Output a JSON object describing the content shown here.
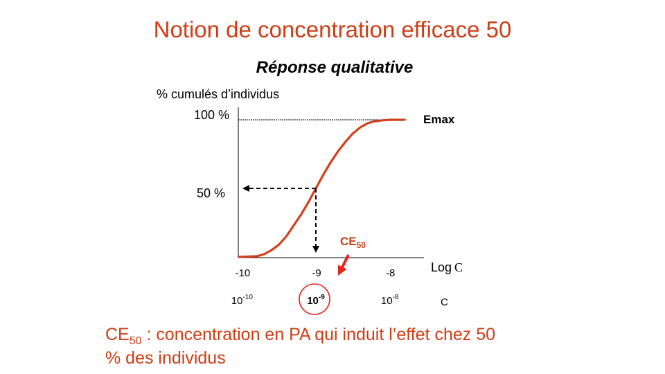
{
  "title": "Notion de concentration efficace 50",
  "subtitle": "Réponse qualitative",
  "colors": {
    "accent": "#cc3e15",
    "curve": "#d23f1c",
    "highlight": "#e8231b"
  },
  "chart_data": {
    "type": "line",
    "ylabel": "% cumulés  d’individus",
    "xlabel": "Log",
    "xlabel_suffix": "C",
    "x_scale": "log",
    "xlim": [
      -10.05,
      -7.65
    ],
    "ylim": [
      0,
      100
    ],
    "x_ticks": [
      {
        "log": "-10",
        "base": "10",
        "exp": "-10",
        "value": -10
      },
      {
        "log": "-9",
        "base": "10",
        "exp": "-9",
        "value": -9
      },
      {
        "log": "-8",
        "base": "10",
        "exp": "-8",
        "value": -8
      }
    ],
    "x_unit_label": "C",
    "y_ticks": [
      {
        "label": "100 %",
        "value": 100
      },
      {
        "label": "50 %",
        "value": 50
      }
    ],
    "series": [
      {
        "x": [
          -10.05,
          -9.8,
          -9.7,
          -9.6,
          -9.5,
          -9.4,
          -9.3,
          -9.2,
          -9.1,
          -9.0,
          -8.9,
          -8.8,
          -8.7,
          -8.6,
          -8.5,
          -8.4,
          -8.3,
          -8.2,
          -8.1,
          -8.0,
          -7.9,
          -7.8
        ],
        "y": [
          0,
          0.5,
          2,
          5,
          9,
          15,
          23,
          31,
          40,
          50,
          60,
          69,
          77,
          84,
          90,
          94.5,
          97.5,
          99,
          99.6,
          100,
          100,
          100
        ]
      }
    ],
    "emax_label": "Emax",
    "ce50": {
      "label": "CE",
      "sub": "50",
      "log": -9,
      "value": 50
    }
  },
  "definition": {
    "term": "CE",
    "sub": "50",
    "line1": " : concentration en PA qui induit l’effet chez 50",
    "line2": "%  des individus"
  }
}
